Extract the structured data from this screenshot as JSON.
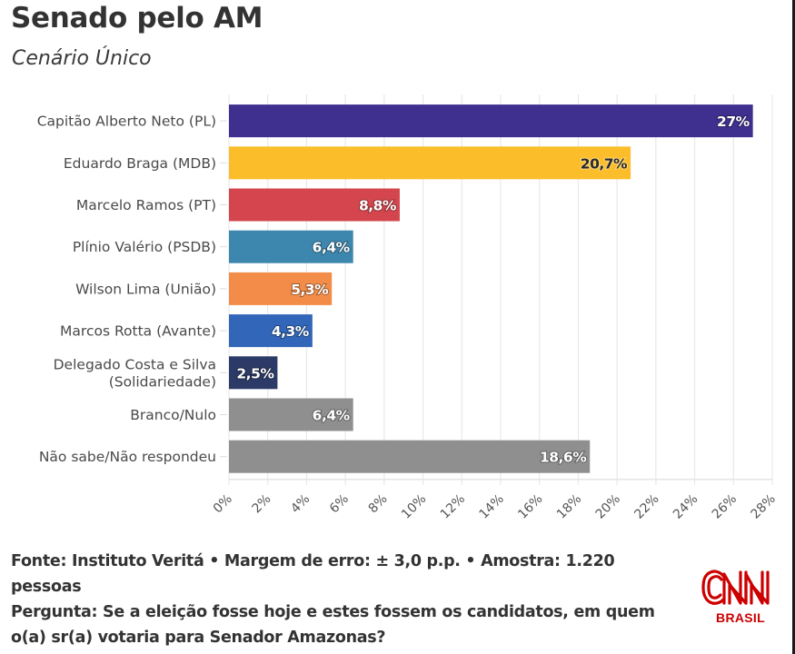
{
  "header": {
    "title": "Senado pelo AM",
    "subtitle": "Cenário Único"
  },
  "chart_data": {
    "type": "bar",
    "orientation": "horizontal",
    "title": "Senado pelo AM",
    "subtitle": "Cenário Único",
    "xlabel": "",
    "ylabel": "",
    "xlim": [
      0,
      28
    ],
    "grid": true,
    "legend": "none",
    "categories": [
      [
        "Capitão Alberto Neto (PL)"
      ],
      [
        "Eduardo Braga (MDB)"
      ],
      [
        "Marcelo Ramos (PT)"
      ],
      [
        "Plínio Valério (PSDB)"
      ],
      [
        "Wilson Lima (União)"
      ],
      [
        "Marcos Rotta (Avante)"
      ],
      [
        "Delegado Costa e Silva",
        "(Solidariedade)"
      ],
      [
        "Branco/Nulo"
      ],
      [
        "Não sabe/Não respondeu"
      ]
    ],
    "values": [
      27,
      20.7,
      8.8,
      6.4,
      5.3,
      4.3,
      2.5,
      6.4,
      18.6
    ],
    "data_labels": [
      "27%",
      "20,7%",
      "8,8%",
      "6,4%",
      "5,3%",
      "4,3%",
      "2,5%",
      "6,4%",
      "18,6%"
    ],
    "colors": [
      "#3f2f8f",
      "#fbbd2a",
      "#d4454d",
      "#3d86ad",
      "#f28c48",
      "#3266b8",
      "#2b3a66",
      "#8f8f8f",
      "#8f8f8f"
    ],
    "label_colors": [
      "#ffffff",
      "#2a2a2a",
      "#ffffff",
      "#ffffff",
      "#ffffff",
      "#ffffff",
      "#ffffff",
      "#ffffff",
      "#ffffff"
    ],
    "x_ticks": [
      0,
      2,
      4,
      6,
      8,
      10,
      12,
      14,
      16,
      18,
      20,
      22,
      24,
      26,
      28
    ],
    "x_tick_labels": [
      "0%",
      "2%",
      "4%",
      "6%",
      "8%",
      "10%",
      "12%",
      "14%",
      "16%",
      "18%",
      "20%",
      "22%",
      "24%",
      "26%",
      "28%"
    ]
  },
  "footer": {
    "source_line": "Fonte: Instituto Veritá • Margem de erro: ± 3,0 p.p. • Amostra: 1.220 pessoas",
    "question_line": "Pergunta: Se a eleição fosse hoje e estes fossem os candidatos, em quem o(a) sr(a) votaria para Senador Amazonas?"
  },
  "logo": {
    "name": "CNN",
    "sub": "BRASIL",
    "color": "#cc0000"
  }
}
